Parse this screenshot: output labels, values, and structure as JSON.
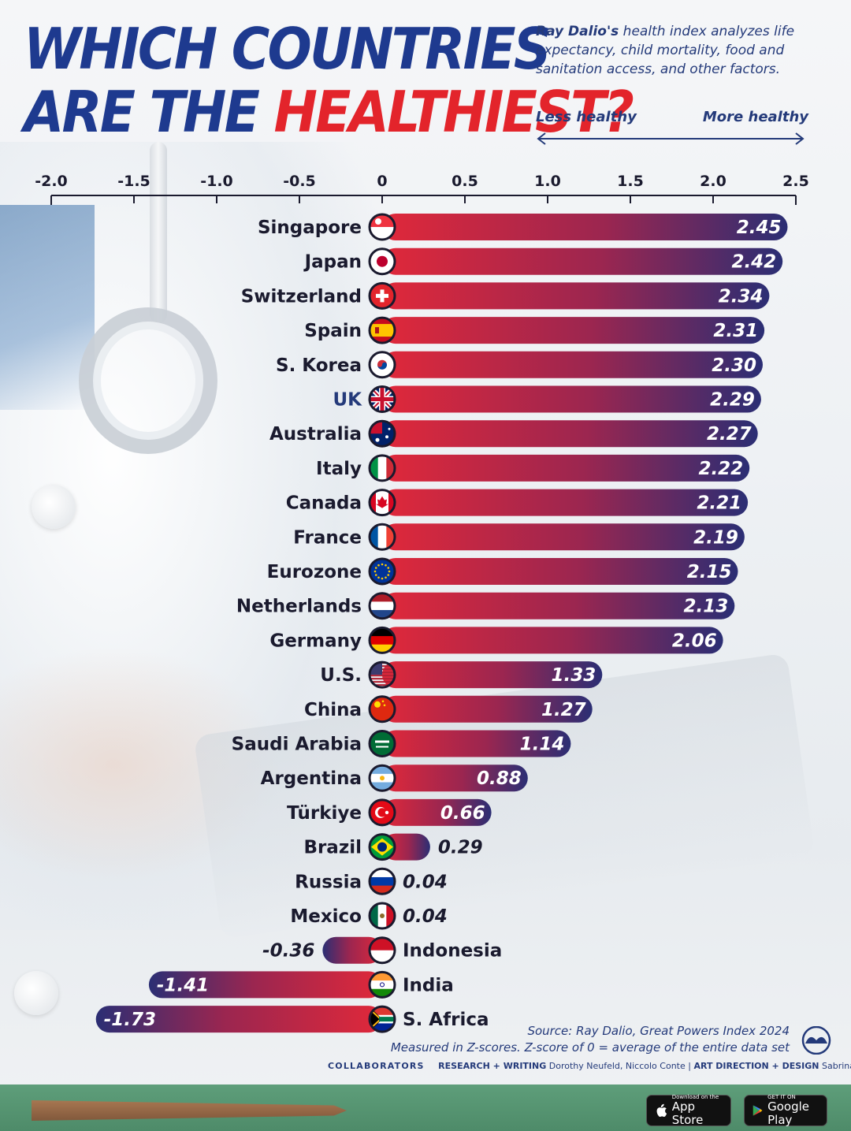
{
  "header": {
    "title_line1": "WHICH COUNTRIES",
    "title_line2_a": "ARE THE ",
    "title_line2_b": "HEALTHIEST?",
    "intro_bold": "Ray Dalio's",
    "intro_rest": " health index analyzes life expectancy, child mortality, food and sanitation access, and other factors.",
    "less_label": "Less healthy",
    "more_label": "More healthy"
  },
  "colors": {
    "navy": "#1e3a8f",
    "red": "#e3242b",
    "bar_start": "#e0283a",
    "bar_end": "#2b2e74"
  },
  "chart_data": {
    "type": "bar",
    "orientation": "horizontal",
    "xlim": [
      -2.0,
      2.5
    ],
    "xticks": [
      "-2.0",
      "-1.5",
      "-1.0",
      "-0.5",
      "0",
      "0.5",
      "1.0",
      "1.5",
      "2.0",
      "2.5"
    ],
    "tick_values": [
      -2.0,
      -1.5,
      -1.0,
      -0.5,
      0,
      0.5,
      1.0,
      1.5,
      2.0,
      2.5
    ],
    "categories": [
      "Singapore",
      "Japan",
      "Switzerland",
      "Spain",
      "S. Korea",
      "UK",
      "Australia",
      "Italy",
      "Canada",
      "France",
      "Eurozone",
      "Netherlands",
      "Germany",
      "U.S.",
      "China",
      "Saudi Arabia",
      "Argentina",
      "Türkiye",
      "Brazil",
      "Russia",
      "Mexico",
      "Indonesia",
      "India",
      "S. Africa"
    ],
    "values": [
      2.45,
      2.42,
      2.34,
      2.31,
      2.3,
      2.29,
      2.27,
      2.22,
      2.21,
      2.19,
      2.15,
      2.13,
      2.06,
      1.33,
      1.27,
      1.14,
      0.88,
      0.66,
      0.29,
      0.04,
      0.04,
      -0.36,
      -1.41,
      -1.73
    ],
    "value_labels": [
      "2.45",
      "2.42",
      "2.34",
      "2.31",
      "2.30",
      "2.29",
      "2.27",
      "2.22",
      "2.21",
      "2.19",
      "2.15",
      "2.13",
      "2.06",
      "1.33",
      "1.27",
      "1.14",
      "0.88",
      "0.66",
      "0.29",
      "0.04",
      "0.04",
      "-0.36",
      "-1.41",
      "-1.73"
    ],
    "flags": [
      "singapore-flag",
      "japan-flag",
      "switzerland-flag",
      "spain-flag",
      "south-korea-flag",
      "uk-flag",
      "australia-flag",
      "italy-flag",
      "canada-flag",
      "france-flag",
      "eu-flag",
      "netherlands-flag",
      "germany-flag",
      "usa-flag",
      "china-flag",
      "saudi-arabia-flag",
      "argentina-flag",
      "turkey-flag",
      "brazil-flag",
      "russia-flag",
      "mexico-flag",
      "indonesia-flag",
      "india-flag",
      "south-africa-flag"
    ]
  },
  "footer": {
    "source_line1": "Source: Ray Dalio, Great Powers Index 2024",
    "source_line2": "Measured in Z-scores. Z-score of 0 = average of the entire data set",
    "collaborators": "COLLABORATORS",
    "research_label": "RESEARCH + WRITING",
    "research_names": "Dorothy Neufeld, Niccolo Conte",
    "separator": "|",
    "design_label": "ART DIRECTION + DESIGN",
    "design_names": "Sabrina Lam",
    "appstore_small": "Download on the",
    "appstore_big": "App Store",
    "gplay_small": "GET IT ON",
    "gplay_big": "Google Play"
  }
}
